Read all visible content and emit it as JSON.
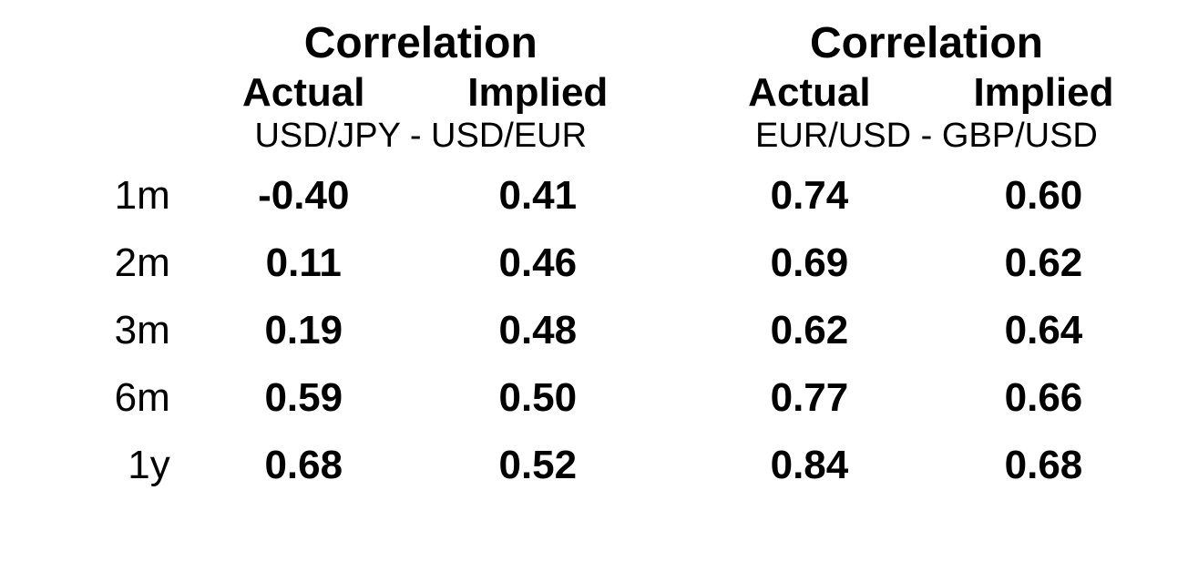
{
  "table": {
    "type": "table",
    "background_color": "#ffffff",
    "text_color": "#000000",
    "font_family": "Arial",
    "header_title_fontsize_pt": 36,
    "subheader_fontsize_pt": 33,
    "pair_label_fontsize_pt": 28,
    "row_label_fontsize_pt": 33,
    "value_fontsize_pt": 33,
    "value_font_weight": "bold",
    "row_label_font_weight": "normal",
    "pair_label_font_weight": "normal",
    "groups": [
      {
        "title": "Correlation",
        "sub_actual": "Actual",
        "sub_implied": "Implied",
        "pair_label": "USD/JPY - USD/EUR"
      },
      {
        "title": "Correlation",
        "sub_actual": "Actual",
        "sub_implied": "Implied",
        "pair_label": "EUR/USD - GBP/USD"
      }
    ],
    "row_labels": [
      "1m",
      "2m",
      "3m",
      "6m",
      "1y"
    ],
    "rows": [
      {
        "g1_actual": "-0.40",
        "g1_implied": "0.41",
        "g2_actual": "0.74",
        "g2_implied": "0.60"
      },
      {
        "g1_actual": "0.11",
        "g1_implied": "0.46",
        "g2_actual": "0.69",
        "g2_implied": "0.62"
      },
      {
        "g1_actual": "0.19",
        "g1_implied": "0.48",
        "g2_actual": "0.62",
        "g2_implied": "0.64"
      },
      {
        "g1_actual": "0.59",
        "g1_implied": "0.50",
        "g2_actual": "0.77",
        "g2_implied": "0.66"
      },
      {
        "g1_actual": "0.68",
        "g1_implied": "0.52",
        "g2_actual": "0.84",
        "g2_implied": "0.68"
      }
    ]
  }
}
